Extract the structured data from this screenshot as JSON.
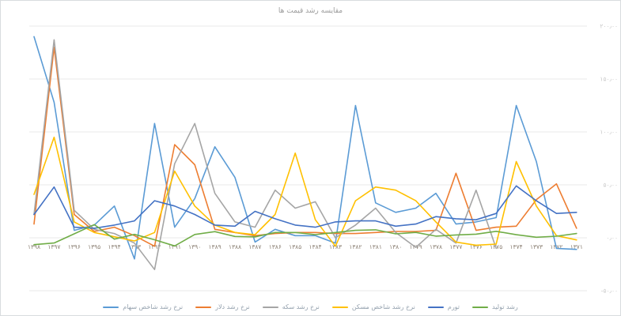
{
  "title": "مقایسه رشد قیمت ها",
  "chart_data": {
    "type": "line",
    "title": "مقایسه رشد قیمت ها",
    "categories": [
      "۱۳۹۸",
      "۱۳۹۷",
      "۱۳۹۶",
      "۱۳۹۵",
      "۱۳۹۴",
      "۱۳۹۳",
      "۱۳۹۲",
      "۱۳۹۱",
      "۱۳۹۰",
      "۱۳۸۹",
      "۱۳۸۸",
      "۱۳۸۷",
      "۱۳۸۶",
      "۱۳۸۵",
      "۱۳۸۴",
      "۱۳۸۳",
      "۱۳۸۲",
      "۱۳۸۱",
      "۱۳۸۰",
      "۱۳۷۹",
      "۱۳۷۸",
      "۱۳۷۷",
      "۱۳۷۶",
      "۱۳۷۵",
      "۱۳۷۴",
      "۱۳۷۳",
      "۱۳۷۲",
      "۱۳۷۱"
    ],
    "categories_note": "Persian calendar years, descending left to right",
    "series": [
      {
        "name": "نرخ رشد شاخص سهام",
        "color": "#5B9BD5",
        "values": [
          190,
          128,
          7,
          12,
          30,
          -20,
          108,
          10,
          37,
          86,
          57,
          -4,
          8,
          2,
          2,
          -5,
          125,
          33,
          24,
          28,
          42,
          13,
          15,
          19,
          125,
          72,
          -10,
          -11
        ]
      },
      {
        "name": "نرخ رشد دلار",
        "color": "#ED7D31",
        "values": [
          13,
          180,
          22,
          6,
          10,
          2,
          -8,
          88,
          69,
          8,
          5,
          2,
          4,
          5,
          5,
          4,
          4,
          5,
          6,
          6,
          7,
          61,
          7,
          10,
          11,
          36,
          51,
          9
        ]
      },
      {
        "name": "نرخ رشد سکه",
        "color": "#A5A5A5",
        "values": [
          22,
          187,
          26,
          8,
          4,
          -5,
          -30,
          70,
          108,
          42,
          15,
          10,
          45,
          28,
          34,
          0,
          12,
          28,
          5,
          -9,
          8,
          -5,
          45,
          -10,
          null,
          null,
          null,
          null
        ]
      },
      {
        "name": "نرخ رشد شاخص مسکن",
        "color": "#FFC000",
        "values": [
          41,
          95,
          15,
          5,
          1,
          -3,
          5,
          63,
          30,
          12,
          5,
          3,
          22,
          80,
          17,
          -8,
          35,
          48,
          45,
          35,
          15,
          -4,
          -7,
          -6,
          72,
          30,
          2,
          -2
        ]
      },
      {
        "name": "تورم",
        "color": "#4472C4",
        "values": [
          22,
          48,
          10,
          9,
          12,
          16,
          35,
          30,
          22,
          12,
          11,
          25,
          18,
          12,
          10,
          15,
          16,
          16,
          11,
          13,
          20,
          18,
          17,
          23,
          49,
          35,
          23,
          24
        ]
      },
      {
        "name": "رشد تولید",
        "color": "#70AD47",
        "values": [
          -6.5,
          -4.9,
          3.7,
          12.5,
          -1.3,
          3.2,
          -1.9,
          -7.7,
          3.1,
          5.8,
          1.3,
          0.9,
          5,
          5,
          3,
          5,
          7,
          7.5,
          3.7,
          5.1,
          1.6,
          2.7,
          3.4,
          6.1,
          2.9,
          0.5,
          1.5,
          4
        ]
      }
    ],
    "y_axis": {
      "min": -50,
      "max": 200,
      "ticks": [
        200,
        150,
        100,
        50,
        0,
        -50
      ],
      "tick_labels": [
        "۲۰۰٫۰۰",
        "۱۵۰٫۰۰",
        "۱۰۰٫۰۰",
        "۵۰٫۰۰",
        "۰٫۰۰",
        "-۵۰٫۰۰"
      ],
      "side": "right",
      "grid": true
    },
    "legend_position": "bottom"
  },
  "style_colors": {
    "grid": "#e9e9e9",
    "x_label": "#8c8175",
    "y_label": "#c7c7c7",
    "title": "#9b9b9b",
    "legend_text": "#93a0ad",
    "border": "#d8dcde"
  }
}
